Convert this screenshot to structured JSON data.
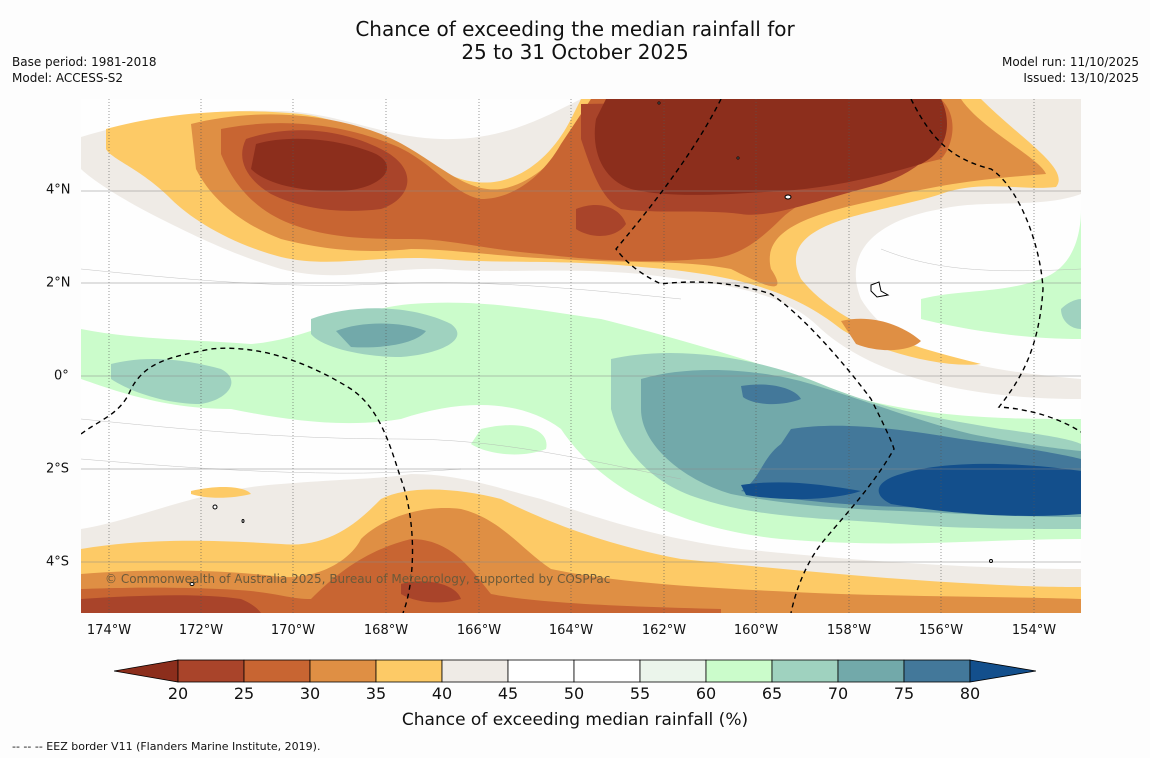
{
  "title": {
    "line1": "Chance of exceeding the median rainfall for",
    "line2": "25 to 31 October 2025"
  },
  "meta": {
    "base_period": "Base period: 1981-2018",
    "model": "Model: ACCESS-S2",
    "model_run": "Model run: 11/10/2025",
    "issued": "Issued: 13/10/2025"
  },
  "lat_labels": [
    "4°N",
    "2°N",
    "0°",
    "2°S",
    "4°S"
  ],
  "lon_labels": [
    "174°W",
    "172°W",
    "170°W",
    "168°W",
    "166°W",
    "164°W",
    "162°W",
    "160°W",
    "158°W",
    "156°W",
    "154°W"
  ],
  "copyright": "© Commonwealth of Australia 2025, Bureau of Meteorology, supported by COSPPac",
  "colorbar": {
    "ticks": [
      "20",
      "25",
      "30",
      "35",
      "40",
      "45",
      "50",
      "55",
      "60",
      "65",
      "70",
      "75",
      "80"
    ],
    "title": "Chance of exceeding median rainfall (%)",
    "colors": [
      "#8c2e1c",
      "#a9442a",
      "#c86532",
      "#df8f44",
      "#fdca66",
      "#efebe6",
      "#ffffff",
      "#ffffff",
      "#ebf5eb",
      "#cbfccb",
      "#9fd2bf",
      "#72a9aa",
      "#43789a",
      "#134f8c"
    ]
  },
  "footnote": "--  --  -- EEZ border V11 (Flanders Marine Institute, 2019).",
  "map_fields": {
    "background": "#fefefe",
    "regions": [
      {
        "name": "north-dry-band-outer",
        "category": "40-45",
        "color": "#efebe6"
      },
      {
        "name": "north-dry-band-35",
        "category": "35-40",
        "color": "#fdca66"
      },
      {
        "name": "north-dry-band-30",
        "category": "30-35",
        "color": "#df8f44"
      },
      {
        "name": "north-dry-band-25",
        "category": "25-30",
        "color": "#c86532"
      },
      {
        "name": "north-dry-band-20",
        "category": "20-25",
        "color": "#a9442a"
      },
      {
        "name": "north-dry-core",
        "category": "<20",
        "color": "#8c2e1c"
      },
      {
        "name": "equatorial-wet-60",
        "category": "60-65",
        "color": "#cbfccb"
      },
      {
        "name": "equatorial-wet-65",
        "category": "65-70",
        "color": "#9fd2bf"
      },
      {
        "name": "equatorial-wet-70",
        "category": "70-75",
        "color": "#72a9aa"
      },
      {
        "name": "equatorial-wet-75",
        "category": "75-80",
        "color": "#43789a"
      },
      {
        "name": "equatorial-wet-core",
        "category": ">80",
        "color": "#134f8c"
      },
      {
        "name": "south-dry-band",
        "category": "20-40",
        "color": "#df8f44"
      }
    ]
  }
}
